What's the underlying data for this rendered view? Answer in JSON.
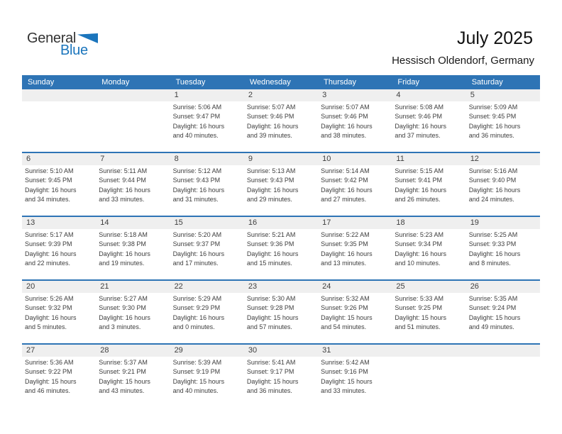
{
  "logo": {
    "part1": "General",
    "part2": "Blue"
  },
  "header": {
    "title": "July 2025",
    "subtitle": "Hessisch Oldendorf, Germany"
  },
  "colors": {
    "header_blue": "#2e74b5",
    "band_gray": "#efefef",
    "logo_blue": "#1b75bc",
    "text_dark": "#3d3d3d"
  },
  "weekdays": [
    "Sunday",
    "Monday",
    "Tuesday",
    "Wednesday",
    "Thursday",
    "Friday",
    "Saturday"
  ],
  "weeks": [
    [
      null,
      null,
      {
        "day": "1",
        "sunrise": "Sunrise: 5:06 AM",
        "sunset": "Sunset: 9:47 PM",
        "daylight1": "Daylight: 16 hours",
        "daylight2": "and 40 minutes."
      },
      {
        "day": "2",
        "sunrise": "Sunrise: 5:07 AM",
        "sunset": "Sunset: 9:46 PM",
        "daylight1": "Daylight: 16 hours",
        "daylight2": "and 39 minutes."
      },
      {
        "day": "3",
        "sunrise": "Sunrise: 5:07 AM",
        "sunset": "Sunset: 9:46 PM",
        "daylight1": "Daylight: 16 hours",
        "daylight2": "and 38 minutes."
      },
      {
        "day": "4",
        "sunrise": "Sunrise: 5:08 AM",
        "sunset": "Sunset: 9:46 PM",
        "daylight1": "Daylight: 16 hours",
        "daylight2": "and 37 minutes."
      },
      {
        "day": "5",
        "sunrise": "Sunrise: 5:09 AM",
        "sunset": "Sunset: 9:45 PM",
        "daylight1": "Daylight: 16 hours",
        "daylight2": "and 36 minutes."
      }
    ],
    [
      {
        "day": "6",
        "sunrise": "Sunrise: 5:10 AM",
        "sunset": "Sunset: 9:45 PM",
        "daylight1": "Daylight: 16 hours",
        "daylight2": "and 34 minutes."
      },
      {
        "day": "7",
        "sunrise": "Sunrise: 5:11 AM",
        "sunset": "Sunset: 9:44 PM",
        "daylight1": "Daylight: 16 hours",
        "daylight2": "and 33 minutes."
      },
      {
        "day": "8",
        "sunrise": "Sunrise: 5:12 AM",
        "sunset": "Sunset: 9:43 PM",
        "daylight1": "Daylight: 16 hours",
        "daylight2": "and 31 minutes."
      },
      {
        "day": "9",
        "sunrise": "Sunrise: 5:13 AM",
        "sunset": "Sunset: 9:43 PM",
        "daylight1": "Daylight: 16 hours",
        "daylight2": "and 29 minutes."
      },
      {
        "day": "10",
        "sunrise": "Sunrise: 5:14 AM",
        "sunset": "Sunset: 9:42 PM",
        "daylight1": "Daylight: 16 hours",
        "daylight2": "and 27 minutes."
      },
      {
        "day": "11",
        "sunrise": "Sunrise: 5:15 AM",
        "sunset": "Sunset: 9:41 PM",
        "daylight1": "Daylight: 16 hours",
        "daylight2": "and 26 minutes."
      },
      {
        "day": "12",
        "sunrise": "Sunrise: 5:16 AM",
        "sunset": "Sunset: 9:40 PM",
        "daylight1": "Daylight: 16 hours",
        "daylight2": "and 24 minutes."
      }
    ],
    [
      {
        "day": "13",
        "sunrise": "Sunrise: 5:17 AM",
        "sunset": "Sunset: 9:39 PM",
        "daylight1": "Daylight: 16 hours",
        "daylight2": "and 22 minutes."
      },
      {
        "day": "14",
        "sunrise": "Sunrise: 5:18 AM",
        "sunset": "Sunset: 9:38 PM",
        "daylight1": "Daylight: 16 hours",
        "daylight2": "and 19 minutes."
      },
      {
        "day": "15",
        "sunrise": "Sunrise: 5:20 AM",
        "sunset": "Sunset: 9:37 PM",
        "daylight1": "Daylight: 16 hours",
        "daylight2": "and 17 minutes."
      },
      {
        "day": "16",
        "sunrise": "Sunrise: 5:21 AM",
        "sunset": "Sunset: 9:36 PM",
        "daylight1": "Daylight: 16 hours",
        "daylight2": "and 15 minutes."
      },
      {
        "day": "17",
        "sunrise": "Sunrise: 5:22 AM",
        "sunset": "Sunset: 9:35 PM",
        "daylight1": "Daylight: 16 hours",
        "daylight2": "and 13 minutes."
      },
      {
        "day": "18",
        "sunrise": "Sunrise: 5:23 AM",
        "sunset": "Sunset: 9:34 PM",
        "daylight1": "Daylight: 16 hours",
        "daylight2": "and 10 minutes."
      },
      {
        "day": "19",
        "sunrise": "Sunrise: 5:25 AM",
        "sunset": "Sunset: 9:33 PM",
        "daylight1": "Daylight: 16 hours",
        "daylight2": "and 8 minutes."
      }
    ],
    [
      {
        "day": "20",
        "sunrise": "Sunrise: 5:26 AM",
        "sunset": "Sunset: 9:32 PM",
        "daylight1": "Daylight: 16 hours",
        "daylight2": "and 5 minutes."
      },
      {
        "day": "21",
        "sunrise": "Sunrise: 5:27 AM",
        "sunset": "Sunset: 9:30 PM",
        "daylight1": "Daylight: 16 hours",
        "daylight2": "and 3 minutes."
      },
      {
        "day": "22",
        "sunrise": "Sunrise: 5:29 AM",
        "sunset": "Sunset: 9:29 PM",
        "daylight1": "Daylight: 16 hours",
        "daylight2": "and 0 minutes."
      },
      {
        "day": "23",
        "sunrise": "Sunrise: 5:30 AM",
        "sunset": "Sunset: 9:28 PM",
        "daylight1": "Daylight: 15 hours",
        "daylight2": "and 57 minutes."
      },
      {
        "day": "24",
        "sunrise": "Sunrise: 5:32 AM",
        "sunset": "Sunset: 9:26 PM",
        "daylight1": "Daylight: 15 hours",
        "daylight2": "and 54 minutes."
      },
      {
        "day": "25",
        "sunrise": "Sunrise: 5:33 AM",
        "sunset": "Sunset: 9:25 PM",
        "daylight1": "Daylight: 15 hours",
        "daylight2": "and 51 minutes."
      },
      {
        "day": "26",
        "sunrise": "Sunrise: 5:35 AM",
        "sunset": "Sunset: 9:24 PM",
        "daylight1": "Daylight: 15 hours",
        "daylight2": "and 49 minutes."
      }
    ],
    [
      {
        "day": "27",
        "sunrise": "Sunrise: 5:36 AM",
        "sunset": "Sunset: 9:22 PM",
        "daylight1": "Daylight: 15 hours",
        "daylight2": "and 46 minutes."
      },
      {
        "day": "28",
        "sunrise": "Sunrise: 5:37 AM",
        "sunset": "Sunset: 9:21 PM",
        "daylight1": "Daylight: 15 hours",
        "daylight2": "and 43 minutes."
      },
      {
        "day": "29",
        "sunrise": "Sunrise: 5:39 AM",
        "sunset": "Sunset: 9:19 PM",
        "daylight1": "Daylight: 15 hours",
        "daylight2": "and 40 minutes."
      },
      {
        "day": "30",
        "sunrise": "Sunrise: 5:41 AM",
        "sunset": "Sunset: 9:17 PM",
        "daylight1": "Daylight: 15 hours",
        "daylight2": "and 36 minutes."
      },
      {
        "day": "31",
        "sunrise": "Sunrise: 5:42 AM",
        "sunset": "Sunset: 9:16 PM",
        "daylight1": "Daylight: 15 hours",
        "daylight2": "and 33 minutes."
      },
      null,
      null
    ]
  ]
}
